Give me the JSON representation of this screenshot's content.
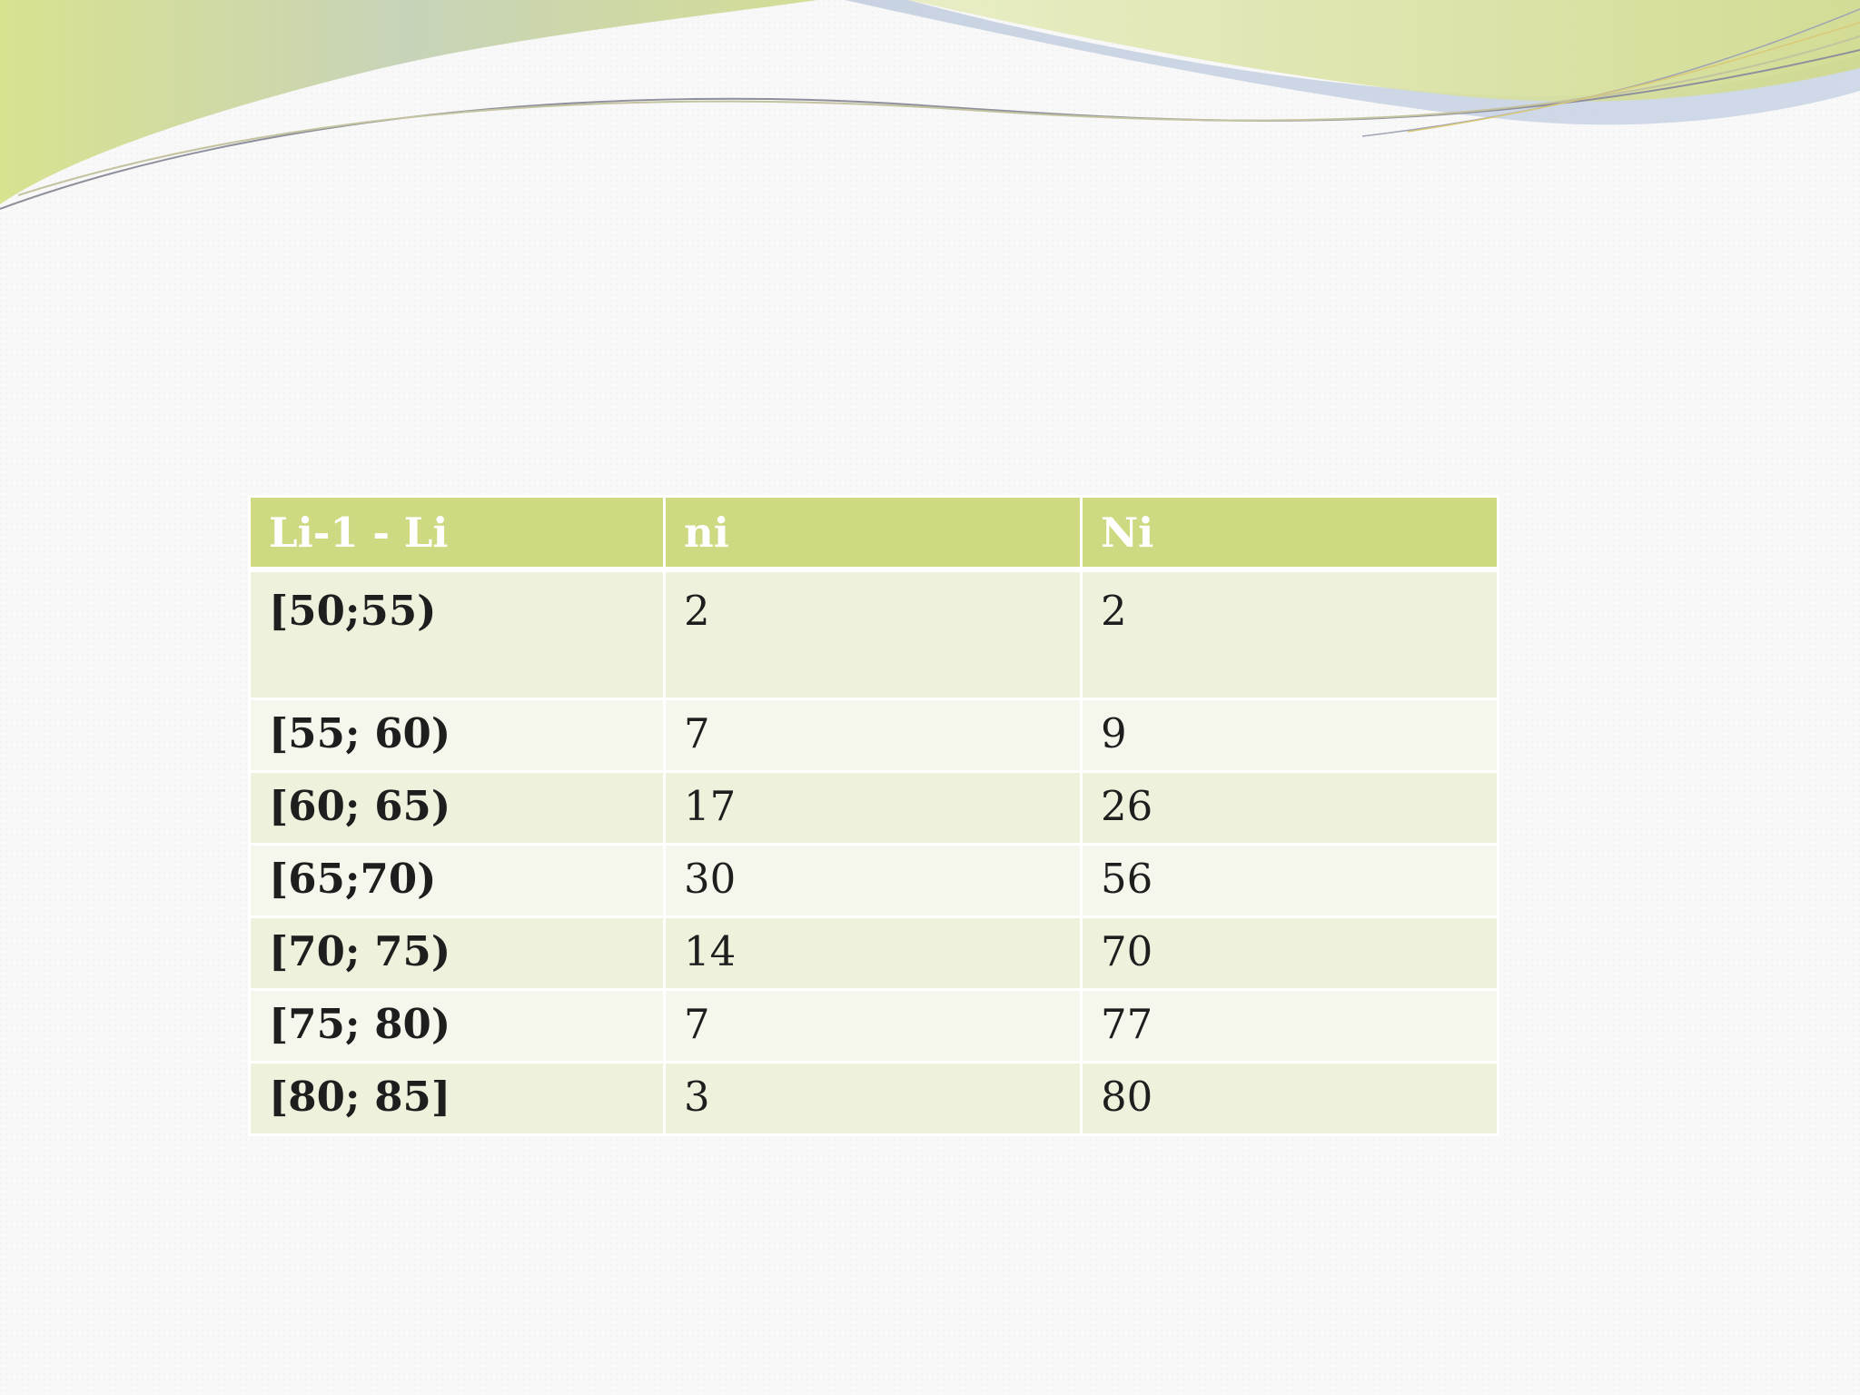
{
  "table": {
    "headers": [
      "Li-1  - Li",
      "ni",
      "Ni"
    ],
    "rows": [
      {
        "interval": "[50;55)",
        "ni": "2",
        "Ni": "2"
      },
      {
        "interval": "[55; 60)",
        "ni": "7",
        "Ni": "9"
      },
      {
        "interval": "[60; 65)",
        "ni": "17",
        "Ni": "26"
      },
      {
        "interval": "[65;70)",
        "ni": "30",
        "Ni": "56"
      },
      {
        "interval": "[70; 75)",
        "ni": "14",
        "Ni": "70"
      },
      {
        "interval": "[75; 80)",
        "ni": "7",
        "Ni": "77"
      },
      {
        "interval": "[80; 85]",
        "ni": "3",
        "Ni": "80"
      }
    ]
  },
  "theme": {
    "header_color": "#cfd982",
    "row_odd_color": "#eef1dc",
    "row_even_color": "#f5f7ed",
    "wave_green": "#d3dc8a",
    "wave_blue": "#b8c6d8"
  }
}
